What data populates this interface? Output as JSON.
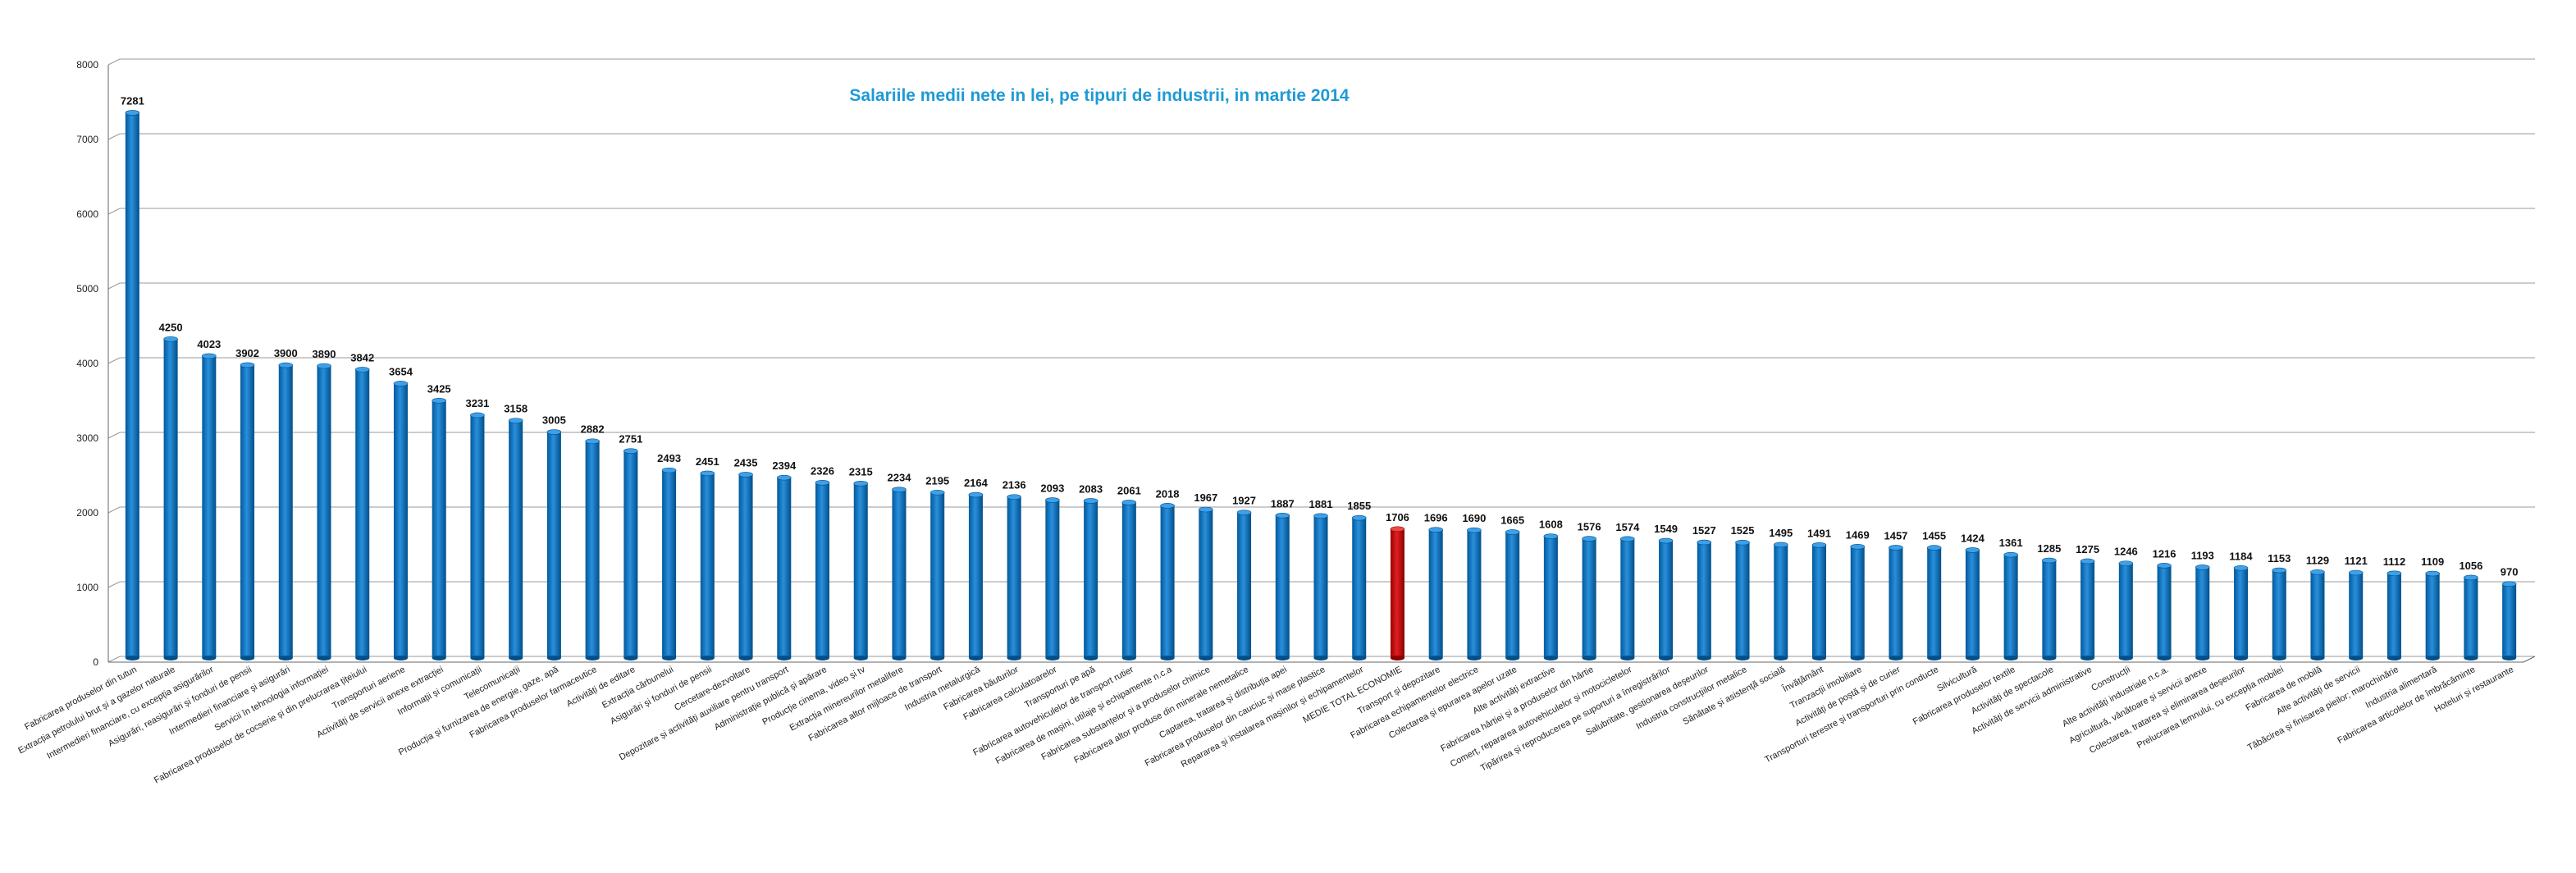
{
  "chart_data": {
    "type": "bar",
    "title": "Salariile medii nete in lei, pe tipuri de industrii, in martie 2014",
    "xlabel": "",
    "ylabel": "",
    "ylim": [
      0,
      8000
    ],
    "yticks": [
      0,
      1000,
      2000,
      3000,
      4000,
      5000,
      6000,
      7000,
      8000
    ],
    "grid": true,
    "legend": "none",
    "colors": {
      "bar": "#0070c0",
      "highlight": "#c00000",
      "highlight_label": "#c00000",
      "title": "#1e9ad6",
      "grid": "#9a9a9a"
    },
    "highlight_category": "MEDIE TOTAL ECONOMIE",
    "categories": [
      "Fabricarea produselor din tutun",
      "Extracția petrolului brut și a gazelor naturale",
      "Intermedieri financiare, cu excepția asigurărilor",
      "Asigurări, reasigurări și fonduri de pensii",
      "Intermedieri financiare și asigurări",
      "Servicii în tehnologia informației",
      "Fabricarea produselor de cocserie și din prelucrarea țițeiului",
      "Transporturi aeriene",
      "Activități de servicii anexe extracției",
      "Informații și comunicații",
      "Telecomunicații",
      "Producția și furnizarea de energie, gaze, apă",
      "Fabricarea produselor farmaceutice",
      "Activități de editare",
      "Extracția cărbunelui",
      "Asigurări și fonduri de pensii",
      "Cercetare-dezvoltare",
      "Depozitare și activități auxiliare pentru transport",
      "Administrație publică și apărare",
      "Producție cinema, video și tv",
      "Extracția minereurilor metalifere",
      "Fabricarea altor mijloace de transport",
      "Industria metalurgică",
      "Fabricarea băuturilor",
      "Fabricarea calculatoarelor",
      "Transporturi pe apă",
      "Fabricarea autovehiculelor de transport rutier",
      "Fabricarea de mașini, utilaje și echipamente n.c.a",
      "Fabricarea substanțelor și a produselor chimice",
      "Fabricarea altor produse din minerale nemetalice",
      "Captarea, tratarea și distribuția apei",
      "Fabricarea produselor din cauciuc și mase plastice",
      "Repararea și instalarea mașinilor și echipamentelor",
      "MEDIE TOTAL ECONOMIE",
      "Transport și depozitare",
      "Fabricarea echipamentelor electrice",
      "Colectarea și epurarea apelor uzate",
      "Alte activități extractive",
      "Fabricarea hârtiei și a produselor din hârtie",
      "Comerț, repararea autovehiculelor și motocicletelor",
      "Tipărirea și reproducerea pe suporturi a înregistrărilor",
      "Salubritate, gestionarea deșeurilor",
      "Industria construcțiilor metalice",
      "Sănătate și asistență socială",
      "Învățământ",
      "Tranzacții imobiliare",
      "Activități de poștă și de curier",
      "Transporturi terestre și transporturi prin conducte",
      "Silvicultură",
      "Fabricarea produselor textile",
      "Activități de spectacole",
      "Activități de servicii administrative",
      "Construcții",
      "Alte activități industriale n.c.a.",
      "Agricultură, vânătoare și servicii anexe",
      "Colectarea, tratarea și eliminarea deșeurilor",
      "Prelucrarea lemnului, cu excepția mobilei",
      "Fabricarea de mobilă",
      "Alte activități de servicii",
      "Tăbăcirea și finisarea pieilor; marochinărie",
      "Industria alimentară",
      "Fabricarea articolelor de îmbrăcăminte",
      "Hoteluri și restaurante"
    ],
    "values": [
      7281,
      4250,
      4023,
      3902,
      3900,
      3890,
      3842,
      3654,
      3425,
      3231,
      3158,
      3005,
      2882,
      2751,
      2493,
      2451,
      2435,
      2394,
      2326,
      2315,
      2234,
      2195,
      2164,
      2136,
      2093,
      2083,
      2061,
      2018,
      1967,
      1927,
      1887,
      1881,
      1855,
      1706,
      1696,
      1690,
      1665,
      1608,
      1576,
      1574,
      1549,
      1527,
      1525,
      1495,
      1491,
      1469,
      1457,
      1455,
      1424,
      1361,
      1285,
      1275,
      1246,
      1216,
      1193,
      1184,
      1153,
      1129,
      1121,
      1112,
      1109,
      1056,
      970
    ]
  }
}
